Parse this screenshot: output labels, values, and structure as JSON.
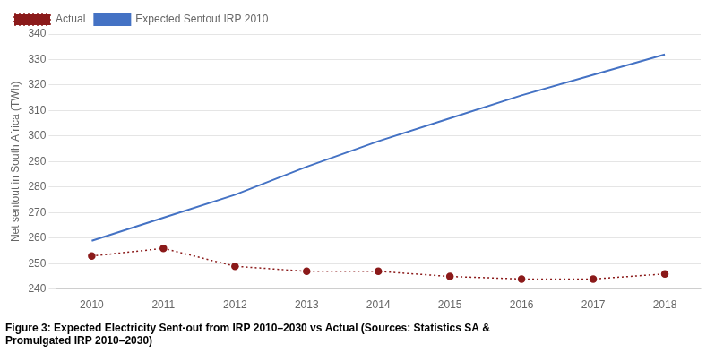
{
  "chart_data": {
    "type": "line",
    "x": [
      2010,
      2011,
      2012,
      2013,
      2014,
      2015,
      2016,
      2017,
      2018
    ],
    "series": [
      {
        "name": "Expected Sentout IRP 2010",
        "color": "#4472C4",
        "line_style": "solid",
        "marker": "none",
        "values": [
          259,
          268,
          277,
          288,
          298,
          307,
          316,
          324,
          332
        ]
      },
      {
        "name": "Actual",
        "color": "#8B1A1A",
        "line_style": "dotted",
        "marker": "circle",
        "values": [
          253,
          256,
          249,
          247,
          247,
          245,
          244,
          244,
          246
        ]
      }
    ],
    "ylabel": "Net sentout in South Africa (TWh)",
    "xlim": [
      2009.5,
      2018.5
    ],
    "xticks": [
      2010,
      2011,
      2012,
      2013,
      2014,
      2015,
      2016,
      2017,
      2018
    ],
    "ylim": [
      240,
      340
    ],
    "yticks": [
      240,
      250,
      260,
      270,
      280,
      290,
      300,
      310,
      320,
      330,
      340
    ],
    "grid": "y",
    "legend": "upper left",
    "caption": [
      "Figure 3: Expected Electricity Sent-out from IRP 2010–2030 vs Actual (Sources: Statistics SA &",
      "Promulgated IRP 2010–2030)"
    ]
  }
}
